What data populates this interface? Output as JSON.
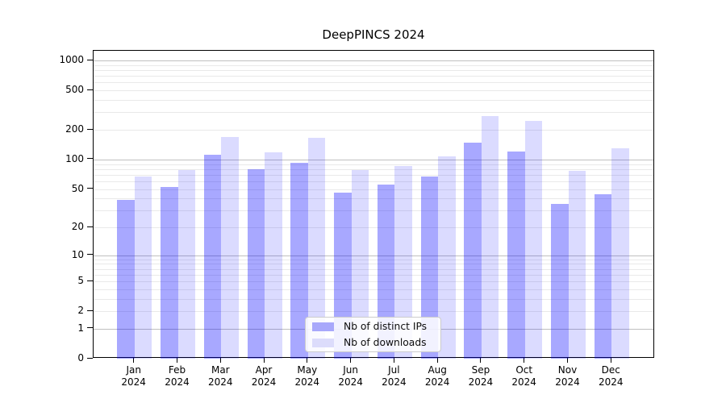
{
  "chart_data": {
    "type": "bar",
    "title": "DeepPINCS 2024",
    "categories": [
      "Jan 2024",
      "Feb 2024",
      "Mar 2024",
      "Apr 2024",
      "May 2024",
      "Jun 2024",
      "Jul 2024",
      "Aug 2024",
      "Sep 2024",
      "Oct 2024",
      "Nov 2024",
      "Dec 2024"
    ],
    "series": [
      {
        "name": "Nb of distinct IPs",
        "color_hex": "#a8a8fb",
        "color_rgba": "rgba(0,0,255,0.34)",
        "values": [
          39,
          52,
          112,
          80,
          93,
          46,
          55,
          67,
          148,
          120,
          35,
          44
        ]
      },
      {
        "name": "Nb of downloads",
        "color_hex": "#dcdcfb",
        "color_rgba": "rgba(0,0,255,0.14)",
        "values": [
          67,
          78,
          170,
          119,
          166,
          78,
          86,
          107,
          277,
          246,
          77,
          130
        ]
      }
    ],
    "xlabel": "",
    "ylabel": "",
    "yscale": "log1p",
    "yticks": [
      0,
      1,
      2,
      5,
      10,
      20,
      50,
      100,
      200,
      500,
      1000
    ],
    "ylim": [
      0,
      1250
    ],
    "grid": true,
    "grid_major_values": [
      1,
      10,
      100,
      1000
    ],
    "legend_position": "lower center",
    "colors": {
      "grid_minor": "#e9e9e9",
      "grid_major": "#c0c0c0",
      "axis": "#000000",
      "legend_border": "#cccccc"
    }
  }
}
